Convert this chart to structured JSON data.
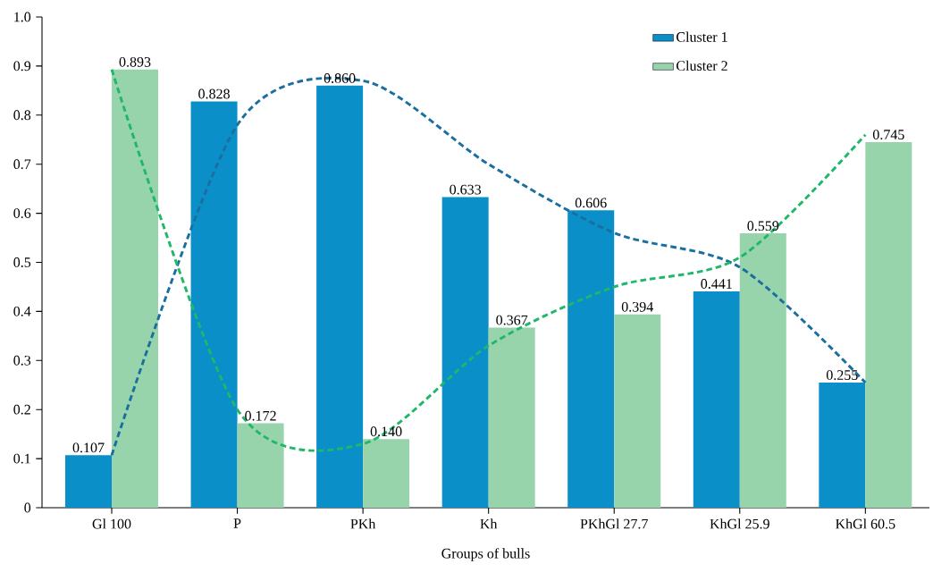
{
  "chart_data": {
    "type": "bar",
    "xlabel": "Groups of bulls",
    "categories": [
      "Gl 100",
      "P",
      "PKh",
      "Kh",
      "PKhGl 27.7",
      "KhGl 25.9",
      "KhGl 60.5"
    ],
    "series": [
      {
        "name": "Cluster 1",
        "color": "#0a8fc8",
        "values": [
          0.107,
          0.828,
          0.86,
          0.633,
          0.606,
          0.441,
          0.255
        ],
        "value_labels": [
          "0.107",
          "0.828",
          "0.860",
          "0.633",
          "0.606",
          "0.441",
          "0.255"
        ]
      },
      {
        "name": "Cluster 2",
        "color": "#98d4ab",
        "values": [
          0.893,
          0.172,
          0.14,
          0.367,
          0.394,
          0.559,
          0.745
        ],
        "value_labels": [
          "0.893",
          "0.172",
          "0.140",
          "0.367",
          "0.394",
          "0.559",
          "0.745"
        ]
      },
      {
        "type": "line",
        "color": "#1a6fa0",
        "line_style": "dashed",
        "values": [
          0.107,
          0.78,
          0.87,
          0.7,
          0.56,
          0.49,
          0.255
        ]
      },
      {
        "type": "line",
        "color": "#1fb86a",
        "line_style": "dashed",
        "values": [
          0.893,
          0.2,
          0.13,
          0.33,
          0.45,
          0.51,
          0.76
        ]
      }
    ],
    "ylim": [
      0,
      1.0
    ],
    "yticks": [
      0,
      0.1,
      0.2,
      0.3,
      0.4,
      0.5,
      0.6,
      0.7,
      0.8,
      0.9,
      {
        "value": 1.0,
        "label": "1.0"
      }
    ],
    "legend": "top right"
  }
}
